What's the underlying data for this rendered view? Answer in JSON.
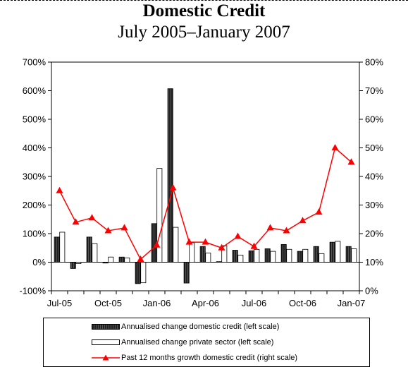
{
  "title": "Domestic Credit",
  "subtitle": "July 2005–January 2007",
  "colors": {
    "line": "#ff0000",
    "bar_dark": "#333333",
    "bar_light": "#ffffff"
  },
  "chart_data": {
    "type": "bar",
    "x_tick_labels": [
      "Jul-05",
      "Oct-05",
      "Jan-06",
      "Apr-06",
      "Jul-06",
      "Oct-06",
      "Jan-07"
    ],
    "categories": [
      "Jul-05",
      "Aug-05",
      "Sep-05",
      "Oct-05",
      "Nov-05",
      "Dec-05",
      "Jan-06",
      "Feb-06",
      "Mar-06",
      "Apr-06",
      "May-06",
      "Jun-06",
      "Jul-06",
      "Aug-06",
      "Sep-06",
      "Oct-06",
      "Nov-06",
      "Dec-06",
      "Jan-07"
    ],
    "left_axis": {
      "ylim": [
        -100,
        700
      ],
      "ticks": [
        "-100%",
        "0%",
        "100%",
        "200%",
        "300%",
        "400%",
        "500%",
        "600%",
        "700%"
      ]
    },
    "right_axis": {
      "ylim": [
        0,
        80
      ],
      "ticks": [
        "0%",
        "10%",
        "20%",
        "30%",
        "40%",
        "50%",
        "60%",
        "70%",
        "80%"
      ]
    },
    "series": [
      {
        "name": "Annualised change domestic credit (left scale)",
        "axis": "left",
        "style": "bar-dark",
        "values": [
          88,
          -22,
          88,
          -3,
          18,
          -75,
          135,
          607,
          -73,
          55,
          2,
          42,
          40,
          47,
          62,
          38,
          55,
          70,
          55
        ]
      },
      {
        "name": "Annualised change private sector (left scale)",
        "axis": "left",
        "style": "bar-white",
        "values": [
          105,
          -5,
          65,
          18,
          15,
          -72,
          328,
          122,
          68,
          32,
          58,
          25,
          45,
          38,
          45,
          45,
          30,
          73,
          47
        ]
      },
      {
        "name": "Past 12 months growth domestic credit (right scale)",
        "axis": "right",
        "style": "line",
        "values": [
          35,
          24,
          25.5,
          21,
          22,
          11,
          16,
          36,
          17,
          17,
          15,
          19,
          15.5,
          22,
          21,
          24.5,
          27.5,
          50,
          45
        ]
      }
    ],
    "legend_position": "bottom",
    "grid": false
  }
}
